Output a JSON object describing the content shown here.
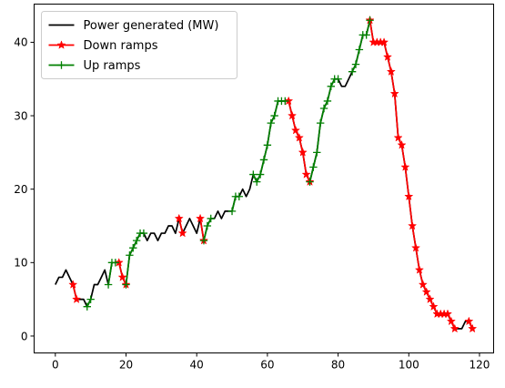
{
  "chart_data": {
    "type": "line",
    "title": "",
    "xlabel": "",
    "ylabel": "",
    "xlim": [
      -6,
      124
    ],
    "ylim": [
      -2.3,
      45.2
    ],
    "xticks": [
      0,
      20,
      40,
      60,
      80,
      100,
      120
    ],
    "yticks": [
      0,
      10,
      20,
      30,
      40
    ],
    "grid": false,
    "legend_position": "upper left",
    "series": [
      {
        "name": "Power generated (MW)",
        "color": "#000000",
        "marker": "none",
        "x": [
          0,
          1,
          2,
          3,
          4,
          5,
          6,
          7,
          8,
          9,
          10,
          11,
          12,
          13,
          14,
          15,
          16,
          17,
          18,
          19,
          20,
          21,
          22,
          23,
          24,
          25,
          26,
          27,
          28,
          29,
          30,
          31,
          32,
          33,
          34,
          35,
          36,
          37,
          38,
          39,
          40,
          41,
          42,
          43,
          44,
          45,
          46,
          47,
          48,
          49,
          50,
          51,
          52,
          53,
          54,
          55,
          56,
          57,
          58,
          59,
          60,
          61,
          62,
          63,
          64,
          65,
          66,
          67,
          68,
          69,
          70,
          71,
          72,
          73,
          74,
          75,
          76,
          77,
          78,
          79,
          80,
          81,
          82,
          83,
          84,
          85,
          86,
          87,
          88,
          89,
          90,
          91,
          92,
          93,
          94,
          95,
          96,
          97,
          98,
          99,
          100,
          101,
          102,
          103,
          104,
          105,
          106,
          107,
          108,
          109,
          110,
          111,
          112,
          113,
          114,
          115,
          116,
          117,
          118
        ],
        "y": [
          7,
          8,
          8,
          9,
          8,
          7,
          5,
          5,
          5,
          4,
          5,
          7,
          7,
          8,
          9,
          7,
          10,
          10,
          10,
          8,
          7,
          11,
          12,
          13,
          14,
          14,
          13,
          14,
          14,
          13,
          14,
          14,
          15,
          15,
          14,
          16,
          14,
          15,
          16,
          15,
          14,
          16,
          13,
          15,
          16,
          16,
          17,
          16,
          17,
          17,
          17,
          19,
          19,
          20,
          19,
          20,
          22,
          21,
          22,
          24,
          26,
          29,
          30,
          32,
          32,
          32,
          32,
          30,
          28,
          27,
          25,
          22,
          21,
          23,
          25,
          29,
          31,
          32,
          34,
          35,
          35,
          34,
          34,
          35,
          36,
          37,
          39,
          41,
          41,
          43,
          40,
          40,
          40,
          40,
          38,
          36,
          33,
          27,
          26,
          23,
          19,
          15,
          12,
          9,
          7,
          6,
          5,
          4,
          3,
          3,
          3,
          3,
          2,
          1,
          1,
          1,
          2,
          2,
          1
        ]
      },
      {
        "name": "Down ramps",
        "color": "#ff0000",
        "marker": "star",
        "segments": [
          {
            "x": [
              5,
              6
            ],
            "y": [
              7,
              5
            ]
          },
          {
            "x": [
              18,
              19,
              20
            ],
            "y": [
              10,
              8,
              7
            ]
          },
          {
            "x": [
              35,
              36
            ],
            "y": [
              16,
              14
            ]
          },
          {
            "x": [
              41,
              42
            ],
            "y": [
              16,
              13
            ]
          },
          {
            "x": [
              66,
              67,
              68,
              69,
              70,
              71,
              72
            ],
            "y": [
              32,
              30,
              28,
              27,
              25,
              22,
              21
            ]
          },
          {
            "x": [
              89,
              90,
              91,
              92,
              93,
              94,
              95,
              96,
              97,
              98,
              99,
              100,
              101,
              102,
              103,
              104,
              105,
              106,
              107,
              108,
              109,
              110,
              111,
              112,
              113
            ],
            "y": [
              43,
              40,
              40,
              40,
              40,
              38,
              36,
              33,
              27,
              26,
              23,
              19,
              15,
              12,
              9,
              7,
              6,
              5,
              4,
              3,
              3,
              3,
              3,
              2,
              1
            ]
          },
          {
            "x": [
              117,
              118
            ],
            "y": [
              2,
              1
            ]
          }
        ]
      },
      {
        "name": "Up ramps",
        "color": "#008000",
        "marker": "plus",
        "segments": [
          {
            "x": [
              9,
              10
            ],
            "y": [
              4,
              5
            ]
          },
          {
            "x": [
              15,
              16,
              17
            ],
            "y": [
              7,
              10,
              10
            ]
          },
          {
            "x": [
              20,
              21,
              22,
              23,
              24,
              25
            ],
            "y": [
              7,
              11,
              12,
              13,
              14,
              14
            ]
          },
          {
            "x": [
              42,
              43,
              44
            ],
            "y": [
              13,
              15,
              16
            ]
          },
          {
            "x": [
              50,
              51,
              52
            ],
            "y": [
              17,
              19,
              19
            ]
          },
          {
            "x": [
              56,
              57,
              58,
              59,
              60,
              61,
              62,
              63,
              64,
              65
            ],
            "y": [
              22,
              21,
              22,
              24,
              26,
              29,
              30,
              32,
              32,
              32
            ]
          },
          {
            "x": [
              72,
              73,
              74,
              75,
              76,
              77,
              78,
              79,
              80
            ],
            "y": [
              21,
              23,
              25,
              29,
              31,
              32,
              34,
              35,
              35
            ]
          },
          {
            "x": [
              84,
              85,
              86,
              87,
              88,
              89
            ],
            "y": [
              36,
              37,
              39,
              41,
              41,
              43
            ]
          }
        ]
      }
    ]
  }
}
